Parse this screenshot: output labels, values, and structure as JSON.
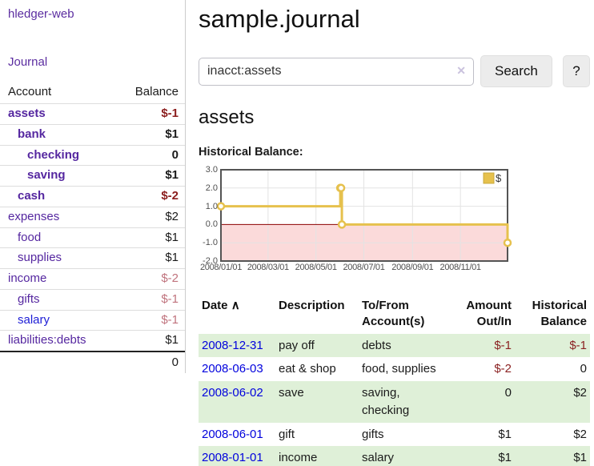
{
  "sidebar": {
    "brand": "hledger-web",
    "journal_link": "Journal",
    "accounts": {
      "col_account": "Account",
      "col_balance": "Balance",
      "rows": [
        {
          "label": "assets",
          "balance": "$-1",
          "cls": "d0 emph",
          "bcls": "emph neg"
        },
        {
          "label": "bank",
          "balance": "$1",
          "cls": "d1 emph",
          "bcls": "emph"
        },
        {
          "label": "checking",
          "balance": "0",
          "cls": "d2 emph",
          "bcls": "emph"
        },
        {
          "label": "saving",
          "balance": "$1",
          "cls": "d2 emph",
          "bcls": "emph"
        },
        {
          "label": "cash",
          "balance": "$-2",
          "cls": "d1 emph",
          "bcls": "emph neg"
        },
        {
          "label": "expenses",
          "balance": "$2",
          "cls": "d0",
          "bcls": ""
        },
        {
          "label": "food",
          "balance": "$1",
          "cls": "d1",
          "bcls": ""
        },
        {
          "label": "supplies",
          "balance": "$1",
          "cls": "d1",
          "bcls": ""
        },
        {
          "label": "income",
          "balance": "$-2",
          "cls": "d0",
          "bcls": "neg-soft"
        },
        {
          "label": "gifts",
          "balance": "$-1",
          "cls": "d1",
          "bcls": "neg-soft"
        },
        {
          "label": "salary",
          "balance": "$-1",
          "cls": "d1 unvisited",
          "bcls": "neg-soft"
        },
        {
          "label": "liabilities:debts",
          "balance": "$1",
          "cls": "d0",
          "bcls": ""
        }
      ],
      "total": "0"
    }
  },
  "header": {
    "title": "sample.journal"
  },
  "search": {
    "value": "inacct:assets",
    "clear_icon": "✕",
    "button_label": "Search",
    "help_label": "?"
  },
  "account_view": {
    "heading": "assets",
    "chart_title": "Historical Balance:"
  },
  "chart_data": {
    "type": "line",
    "step": true,
    "title": "Historical Balance:",
    "x_start": "2008-01-01",
    "x_end": "2008-12-31",
    "x_range_days": 365,
    "ylim": [
      -2,
      3
    ],
    "yticks": [
      3,
      2,
      1,
      0,
      -1,
      -2
    ],
    "xticks": [
      {
        "day": 0,
        "label": "2008/01/01"
      },
      {
        "day": 60,
        "label": "2008/03/01"
      },
      {
        "day": 121,
        "label": "2008/05/01"
      },
      {
        "day": 182,
        "label": "2008/07/01"
      },
      {
        "day": 244,
        "label": "2008/09/01"
      },
      {
        "day": 305,
        "label": "2008/11/01"
      }
    ],
    "series": [
      {
        "name": "$",
        "color": "#e6c14d",
        "points": [
          {
            "date": "2008-01-01",
            "day": 0,
            "value": 1
          },
          {
            "date": "2008-06-01",
            "day": 152,
            "value": 2
          },
          {
            "date": "2008-06-02",
            "day": 153,
            "value": 2
          },
          {
            "date": "2008-06-03",
            "day": 154,
            "value": 0
          },
          {
            "date": "2008-12-31",
            "day": 365,
            "value": -1
          }
        ]
      }
    ],
    "legend": {
      "label": "$",
      "position": "top-right"
    },
    "negative_region_color": "#fbdada",
    "zero_line_color": "#8b0000",
    "grid_color": "#e3e3e3",
    "border_color": "#545454"
  },
  "register": {
    "headers": {
      "date": "Date",
      "sort_icon": "∧",
      "description": "Description",
      "account": "To/From Account(s)",
      "amount": "Amount Out/In",
      "balance": "Historical Balance"
    },
    "rows": [
      {
        "date": "2008-12-31",
        "description": "pay off",
        "account": "debts",
        "amount": "$-1",
        "balance": "$-1",
        "row_cls": "alt",
        "amount_cls": "neg",
        "balance_cls": "neg"
      },
      {
        "date": "2008-06-03",
        "description": "eat & shop",
        "account": "food, supplies",
        "amount": "$-2",
        "balance": "0",
        "row_cls": "",
        "amount_cls": "neg",
        "balance_cls": ""
      },
      {
        "date": "2008-06-02",
        "description": "save",
        "account": "saving, checking",
        "amount": "0",
        "balance": "$2",
        "row_cls": "alt",
        "amount_cls": "",
        "balance_cls": ""
      },
      {
        "date": "2008-06-01",
        "description": "gift",
        "account": "gifts",
        "amount": "$1",
        "balance": "$2",
        "row_cls": "",
        "amount_cls": "",
        "balance_cls": ""
      },
      {
        "date": "2008-01-01",
        "description": "income",
        "account": "salary",
        "amount": "$1",
        "balance": "$1",
        "row_cls": "alt",
        "amount_cls": "",
        "balance_cls": ""
      }
    ]
  }
}
